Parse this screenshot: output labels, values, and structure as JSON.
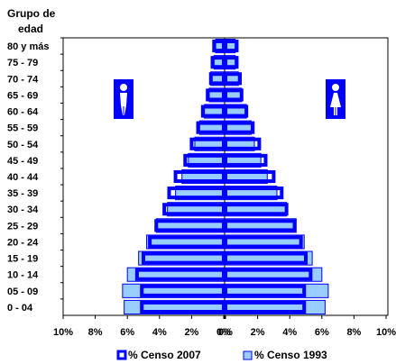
{
  "chart_data": {
    "type": "bar",
    "subtype": "population-pyramid",
    "y_title_line1": "Grupo de",
    "y_title_line2": "edad",
    "categories": [
      "80 y más",
      "75 - 79",
      "70 - 74",
      "65 - 69",
      "60 - 64",
      "55 - 59",
      "50 - 54",
      "45 - 49",
      "40 - 44",
      "35 - 39",
      "30 - 34",
      "25 - 29",
      "20 - 24",
      "15 - 19",
      "10 - 14",
      "05 - 09",
      "0 - 04"
    ],
    "x_tick_labels": [
      "10%",
      "8%",
      "6%",
      "4%",
      "2%",
      "0%",
      "0%",
      "2%",
      "4%",
      "6%",
      "8%",
      "10%"
    ],
    "xlim": [
      0,
      10
    ],
    "series": [
      {
        "name": "% Censo 2007",
        "color_fill": "#ffffff",
        "color_edge": "#0000ff",
        "left": [
          0.6,
          0.7,
          0.8,
          1.0,
          1.3,
          1.6,
          2.0,
          2.4,
          3.0,
          3.4,
          3.7,
          4.2,
          4.6,
          5.0,
          5.4,
          5.1,
          5.1
        ],
        "right": [
          0.7,
          0.7,
          0.9,
          1.0,
          1.3,
          1.7,
          2.1,
          2.5,
          3.0,
          3.5,
          3.8,
          4.3,
          4.7,
          5.0,
          5.3,
          4.9,
          4.9
        ]
      },
      {
        "name": "% Censo 1993",
        "color_fill": "#99ccff",
        "color_edge": "#0000ff",
        "left": [
          0.5,
          0.6,
          0.8,
          0.9,
          1.2,
          1.5,
          1.8,
          2.2,
          2.6,
          3.0,
          3.5,
          4.2,
          4.8,
          5.3,
          6.0,
          6.3,
          6.2
        ],
        "right": [
          0.6,
          0.6,
          0.8,
          1.0,
          1.3,
          1.6,
          1.8,
          2.2,
          2.6,
          3.2,
          3.8,
          4.4,
          4.9,
          5.4,
          6.0,
          6.4,
          6.2
        ]
      }
    ],
    "legend": {
      "placement": "bottom"
    },
    "grid": false,
    "icons": {
      "left": "male-figure-icon",
      "right": "female-figure-icon",
      "color": "#0000ff"
    }
  }
}
